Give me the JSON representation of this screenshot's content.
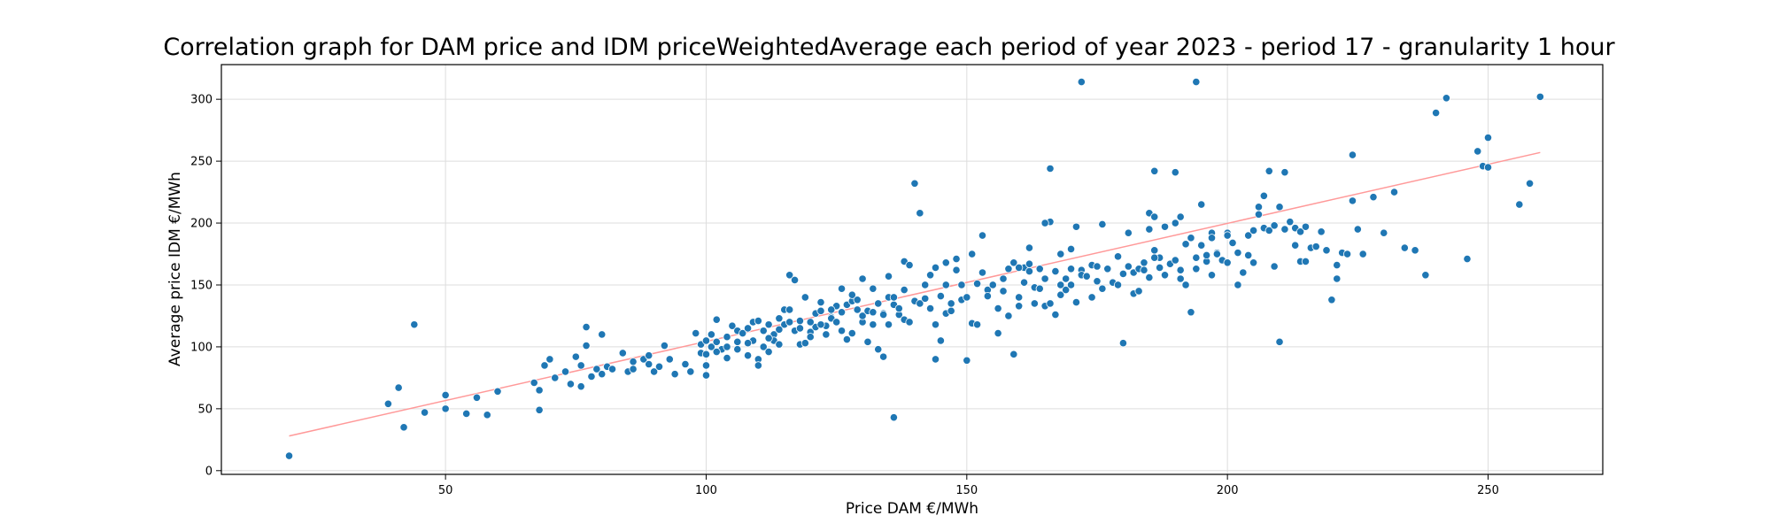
{
  "chart_data": {
    "type": "scatter",
    "title": "Correlation graph for DAM price and IDM priceWeightedAverage each period of year 2023 - period 17 - granularity 1 hour",
    "xlabel": "Price DAM €/MWh",
    "ylabel": "Average price IDM €/MWh",
    "xlim": [
      7,
      272
    ],
    "ylim": [
      -3,
      328
    ],
    "xticks": [
      50,
      100,
      150,
      200,
      250
    ],
    "yticks": [
      0,
      50,
      100,
      150,
      200,
      250,
      300
    ],
    "grid": true,
    "legend": "none",
    "point_color": "#1f77b4",
    "trend_color": "#ff9999",
    "trendline": [
      [
        20,
        28
      ],
      [
        260,
        257
      ]
    ],
    "points": [
      [
        20,
        12
      ],
      [
        39,
        54
      ],
      [
        41,
        67
      ],
      [
        42,
        35
      ],
      [
        44,
        118
      ],
      [
        46,
        47
      ],
      [
        50,
        61
      ],
      [
        50,
        50
      ],
      [
        54,
        46
      ],
      [
        56,
        59
      ],
      [
        58,
        45
      ],
      [
        60,
        64
      ],
      [
        67,
        71
      ],
      [
        68,
        49
      ],
      [
        68,
        65
      ],
      [
        69,
        85
      ],
      [
        70,
        90
      ],
      [
        71,
        75
      ],
      [
        73,
        80
      ],
      [
        74,
        70
      ],
      [
        75,
        92
      ],
      [
        76,
        68
      ],
      [
        76,
        85
      ],
      [
        77,
        101
      ],
      [
        77,
        116
      ],
      [
        78,
        76
      ],
      [
        79,
        82
      ],
      [
        80,
        110
      ],
      [
        80,
        78
      ],
      [
        81,
        84
      ],
      [
        82,
        82
      ],
      [
        84,
        95
      ],
      [
        85,
        80
      ],
      [
        86,
        88
      ],
      [
        86,
        82
      ],
      [
        88,
        90
      ],
      [
        89,
        93
      ],
      [
        89,
        86
      ],
      [
        90,
        80
      ],
      [
        91,
        84
      ],
      [
        92,
        101
      ],
      [
        93,
        90
      ],
      [
        94,
        78
      ],
      [
        96,
        86
      ],
      [
        97,
        80
      ],
      [
        98,
        111
      ],
      [
        99,
        95
      ],
      [
        99,
        102
      ],
      [
        100,
        77
      ],
      [
        100,
        85
      ],
      [
        100,
        105
      ],
      [
        101,
        100
      ],
      [
        101,
        110
      ],
      [
        102,
        122
      ],
      [
        102,
        104
      ],
      [
        103,
        98
      ],
      [
        104,
        108
      ],
      [
        104,
        91
      ],
      [
        105,
        117
      ],
      [
        106,
        113
      ],
      [
        106,
        98
      ],
      [
        107,
        111
      ],
      [
        108,
        93
      ],
      [
        108,
        115
      ],
      [
        109,
        105
      ],
      [
        109,
        120
      ],
      [
        110,
        90
      ],
      [
        110,
        85
      ],
      [
        111,
        100
      ],
      [
        111,
        113
      ],
      [
        112,
        96
      ],
      [
        112,
        118
      ],
      [
        113,
        110
      ],
      [
        113,
        105
      ],
      [
        114,
        123
      ],
      [
        114,
        102
      ],
      [
        115,
        118
      ],
      [
        115,
        130
      ],
      [
        116,
        130
      ],
      [
        116,
        158
      ],
      [
        117,
        154
      ],
      [
        117,
        113
      ],
      [
        118,
        102
      ],
      [
        118,
        121
      ],
      [
        119,
        103
      ],
      [
        119,
        140
      ],
      [
        120,
        112
      ],
      [
        120,
        108
      ],
      [
        121,
        127
      ],
      [
        121,
        116
      ],
      [
        122,
        136
      ],
      [
        122,
        129
      ],
      [
        123,
        110
      ],
      [
        123,
        117
      ],
      [
        124,
        124
      ],
      [
        124,
        123
      ],
      [
        125,
        133
      ],
      [
        125,
        120
      ],
      [
        126,
        128
      ],
      [
        126,
        113
      ],
      [
        127,
        134
      ],
      [
        127,
        106
      ],
      [
        128,
        111
      ],
      [
        128,
        137
      ],
      [
        129,
        130
      ],
      [
        129,
        138
      ],
      [
        130,
        120
      ],
      [
        130,
        125
      ],
      [
        131,
        129
      ],
      [
        131,
        104
      ],
      [
        132,
        118
      ],
      [
        132,
        128
      ],
      [
        133,
        135
      ],
      [
        133,
        98
      ],
      [
        134,
        127
      ],
      [
        134,
        92
      ],
      [
        135,
        118
      ],
      [
        135,
        140
      ],
      [
        135,
        157
      ],
      [
        136,
        43
      ],
      [
        136,
        134
      ],
      [
        137,
        126
      ],
      [
        137,
        131
      ],
      [
        138,
        169
      ],
      [
        138,
        122
      ],
      [
        139,
        166
      ],
      [
        139,
        120
      ],
      [
        140,
        232
      ],
      [
        140,
        137
      ],
      [
        141,
        208
      ],
      [
        141,
        135
      ],
      [
        142,
        139
      ],
      [
        142,
        150
      ],
      [
        143,
        158
      ],
      [
        143,
        131
      ],
      [
        144,
        118
      ],
      [
        144,
        90
      ],
      [
        145,
        141
      ],
      [
        145,
        105
      ],
      [
        146,
        127
      ],
      [
        146,
        168
      ],
      [
        147,
        129
      ],
      [
        147,
        135
      ],
      [
        148,
        171
      ],
      [
        148,
        162
      ],
      [
        149,
        150
      ],
      [
        149,
        138
      ],
      [
        150,
        140
      ],
      [
        150,
        89
      ],
      [
        151,
        119
      ],
      [
        151,
        175
      ],
      [
        152,
        151
      ],
      [
        152,
        118
      ],
      [
        153,
        190
      ],
      [
        153,
        160
      ],
      [
        154,
        146
      ],
      [
        154,
        141
      ],
      [
        155,
        150
      ],
      [
        156,
        131
      ],
      [
        156,
        111
      ],
      [
        157,
        145
      ],
      [
        157,
        155
      ],
      [
        158,
        163
      ],
      [
        158,
        125
      ],
      [
        159,
        94
      ],
      [
        159,
        168
      ],
      [
        160,
        140
      ],
      [
        160,
        133
      ],
      [
        161,
        164
      ],
      [
        161,
        152
      ],
      [
        162,
        180
      ],
      [
        162,
        161
      ],
      [
        163,
        135
      ],
      [
        163,
        148
      ],
      [
        164,
        163
      ],
      [
        164,
        147
      ],
      [
        165,
        155
      ],
      [
        165,
        133
      ],
      [
        166,
        135
      ],
      [
        166,
        201
      ],
      [
        167,
        126
      ],
      [
        167,
        161
      ],
      [
        168,
        142
      ],
      [
        168,
        150
      ],
      [
        169,
        155
      ],
      [
        169,
        146
      ],
      [
        170,
        163
      ],
      [
        170,
        150
      ],
      [
        170,
        179
      ],
      [
        171,
        136
      ],
      [
        172,
        162
      ],
      [
        172,
        158
      ],
      [
        173,
        157
      ],
      [
        174,
        166
      ],
      [
        174,
        140
      ],
      [
        175,
        165
      ],
      [
        175,
        153
      ],
      [
        176,
        147
      ],
      [
        177,
        163
      ],
      [
        178,
        152
      ],
      [
        179,
        150
      ],
      [
        180,
        159
      ],
      [
        180,
        103
      ],
      [
        181,
        192
      ],
      [
        181,
        165
      ],
      [
        182,
        160
      ],
      [
        182,
        143
      ],
      [
        183,
        163
      ],
      [
        183,
        145
      ],
      [
        184,
        168
      ],
      [
        184,
        162
      ],
      [
        185,
        208
      ],
      [
        185,
        156
      ],
      [
        185,
        195
      ],
      [
        186,
        205
      ],
      [
        186,
        178
      ],
      [
        186,
        242
      ],
      [
        187,
        164
      ],
      [
        187,
        172
      ],
      [
        188,
        158
      ],
      [
        188,
        197
      ],
      [
        189,
        167
      ],
      [
        190,
        200
      ],
      [
        190,
        170
      ],
      [
        191,
        155
      ],
      [
        191,
        162
      ],
      [
        192,
        183
      ],
      [
        192,
        150
      ],
      [
        193,
        188
      ],
      [
        193,
        128
      ],
      [
        194,
        163
      ],
      [
        194,
        172
      ],
      [
        195,
        182
      ],
      [
        195,
        215
      ],
      [
        196,
        169
      ],
      [
        196,
        174
      ],
      [
        197,
        192
      ],
      [
        197,
        158
      ],
      [
        198,
        176
      ],
      [
        198,
        175
      ],
      [
        199,
        170
      ],
      [
        200,
        192
      ],
      [
        200,
        168
      ],
      [
        201,
        184
      ],
      [
        202,
        150
      ],
      [
        202,
        176
      ],
      [
        203,
        160
      ],
      [
        204,
        174
      ],
      [
        204,
        190
      ],
      [
        205,
        168
      ],
      [
        206,
        213
      ],
      [
        206,
        207
      ],
      [
        207,
        196
      ],
      [
        207,
        222
      ],
      [
        208,
        242
      ],
      [
        208,
        194
      ],
      [
        209,
        198
      ],
      [
        209,
        165
      ],
      [
        210,
        213
      ],
      [
        210,
        104
      ],
      [
        211,
        241
      ],
      [
        211,
        195
      ],
      [
        212,
        201
      ],
      [
        213,
        182
      ],
      [
        213,
        196
      ],
      [
        214,
        193
      ],
      [
        214,
        169
      ],
      [
        215,
        197
      ],
      [
        215,
        169
      ],
      [
        216,
        180
      ],
      [
        217,
        181
      ],
      [
        218,
        193
      ],
      [
        219,
        178
      ],
      [
        220,
        138
      ],
      [
        221,
        155
      ],
      [
        221,
        166
      ],
      [
        222,
        176
      ],
      [
        223,
        175
      ],
      [
        224,
        255
      ],
      [
        224,
        218
      ],
      [
        225,
        195
      ],
      [
        226,
        175
      ],
      [
        228,
        221
      ],
      [
        230,
        192
      ],
      [
        232,
        225
      ],
      [
        234,
        180
      ],
      [
        236,
        178
      ],
      [
        238,
        158
      ],
      [
        240,
        289
      ],
      [
        242,
        301
      ],
      [
        246,
        171
      ],
      [
        248,
        258
      ],
      [
        249,
        246
      ],
      [
        250,
        269
      ],
      [
        250,
        245
      ],
      [
        256,
        215
      ],
      [
        258,
        232
      ],
      [
        260,
        302
      ],
      [
        166,
        244
      ],
      [
        172,
        314
      ],
      [
        194,
        314
      ],
      [
        171,
        197
      ],
      [
        176,
        199
      ],
      [
        179,
        173
      ],
      [
        186,
        172
      ],
      [
        190,
        241
      ],
      [
        191,
        205
      ],
      [
        197,
        188
      ],
      [
        200,
        190
      ],
      [
        205,
        194
      ],
      [
        165,
        200
      ],
      [
        168,
        175
      ],
      [
        160,
        164
      ],
      [
        162,
        167
      ],
      [
        146,
        150
      ],
      [
        144,
        164
      ],
      [
        138,
        146
      ],
      [
        136,
        140
      ],
      [
        134,
        126
      ],
      [
        132,
        147
      ],
      [
        130,
        155
      ],
      [
        128,
        142
      ],
      [
        126,
        147
      ],
      [
        124,
        130
      ],
      [
        122,
        118
      ],
      [
        120,
        120
      ],
      [
        118,
        115
      ],
      [
        116,
        120
      ],
      [
        114,
        114
      ],
      [
        112,
        107
      ],
      [
        110,
        121
      ],
      [
        108,
        103
      ],
      [
        106,
        104
      ],
      [
        104,
        100
      ],
      [
        102,
        96
      ],
      [
        100,
        94
      ]
    ]
  }
}
